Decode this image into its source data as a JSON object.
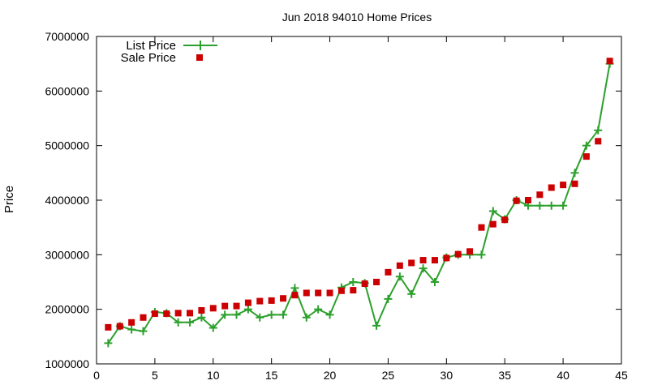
{
  "chart_data": {
    "type": "line",
    "title": "Jun 2018 94010 Home Prices",
    "xlabel": "",
    "ylabel": "Price",
    "xlim": [
      0,
      45
    ],
    "ylim": [
      1000000,
      7000000
    ],
    "x_ticks": [
      0,
      5,
      10,
      15,
      20,
      25,
      30,
      35,
      40,
      45
    ],
    "y_ticks": [
      1000000,
      2000000,
      3000000,
      4000000,
      5000000,
      6000000,
      7000000
    ],
    "legend_position": "top-left",
    "grid": false,
    "x": [
      1,
      2,
      3,
      4,
      5,
      6,
      7,
      8,
      9,
      10,
      11,
      12,
      13,
      14,
      15,
      16,
      17,
      18,
      19,
      20,
      21,
      22,
      23,
      24,
      25,
      26,
      27,
      28,
      29,
      30,
      31,
      32,
      33,
      34,
      35,
      36,
      37,
      38,
      39,
      40,
      41,
      42,
      43,
      44
    ],
    "series": [
      {
        "name": "List Price",
        "style": "line-plus",
        "color": "#2ca02c",
        "values": [
          1380000,
          1690000,
          1630000,
          1600000,
          1950000,
          1930000,
          1760000,
          1760000,
          1850000,
          1660000,
          1900000,
          1900000,
          2000000,
          1850000,
          1900000,
          1900000,
          2390000,
          1850000,
          2000000,
          1900000,
          2400000,
          2500000,
          2480000,
          1700000,
          2190000,
          2600000,
          2280000,
          2750000,
          2500000,
          2950000,
          3000000,
          3000000,
          3000000,
          3800000,
          3650000,
          4000000,
          3900000,
          3900000,
          3900000,
          3900000,
          4500000,
          5000000,
          5280000,
          6500000
        ]
      },
      {
        "name": "Sale Price",
        "style": "square-markers",
        "color": "#cc0000",
        "values": [
          1670000,
          1690000,
          1760000,
          1850000,
          1920000,
          1920000,
          1930000,
          1930000,
          1980000,
          2020000,
          2060000,
          2060000,
          2120000,
          2150000,
          2160000,
          2200000,
          2260000,
          2300000,
          2300000,
          2300000,
          2340000,
          2350000,
          2470000,
          2500000,
          2680000,
          2800000,
          2850000,
          2900000,
          2900000,
          2940000,
          3010000,
          3060000,
          3500000,
          3560000,
          3640000,
          3990000,
          4000000,
          4100000,
          4230000,
          4280000,
          4300000,
          4800000,
          5080000,
          6550000
        ]
      }
    ]
  }
}
